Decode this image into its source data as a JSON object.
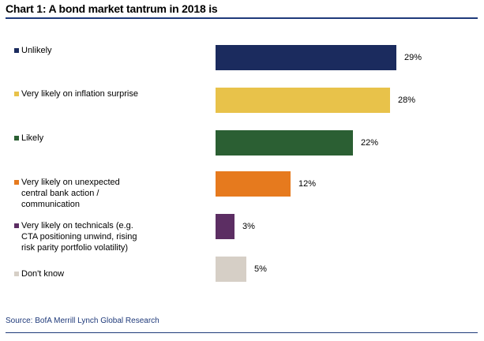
{
  "title": "Chart 1: A bond market tantrum in 2018 is",
  "source": "Source: BofA Merrill Lynch Global Research",
  "chart_data": {
    "type": "bar",
    "orientation": "horizontal",
    "categories": [
      "Unlikely",
      "Very likely on inflation surprise",
      "Likely",
      "Very likely on unexpected central bank action / communication",
      "Very likely on technicals (e.g. CTA positioning unwind, rising risk parity portfolio volatility)",
      "Don't know"
    ],
    "category_lines": [
      [
        "Unlikely"
      ],
      [
        "Very likely on inflation surprise"
      ],
      [
        "Likely"
      ],
      [
        "Very likely on unexpected",
        "central bank action /",
        "communication"
      ],
      [
        "Very likely on technicals (e.g.",
        "CTA positioning unwind, rising",
        "risk parity portfolio volatility)"
      ],
      [
        "Don't know"
      ]
    ],
    "values": [
      29,
      28,
      22,
      12,
      3,
      5
    ],
    "value_labels": [
      "29%",
      "28%",
      "22%",
      "12%",
      "3%",
      "5%"
    ],
    "unit": "%",
    "colors": [
      "#1b2b5e",
      "#e8c24a",
      "#2b5f33",
      "#e67a1e",
      "#5c2e63",
      "#d6cfc6"
    ],
    "xlim": [
      0,
      29
    ],
    "grid": false,
    "legend": "left"
  }
}
